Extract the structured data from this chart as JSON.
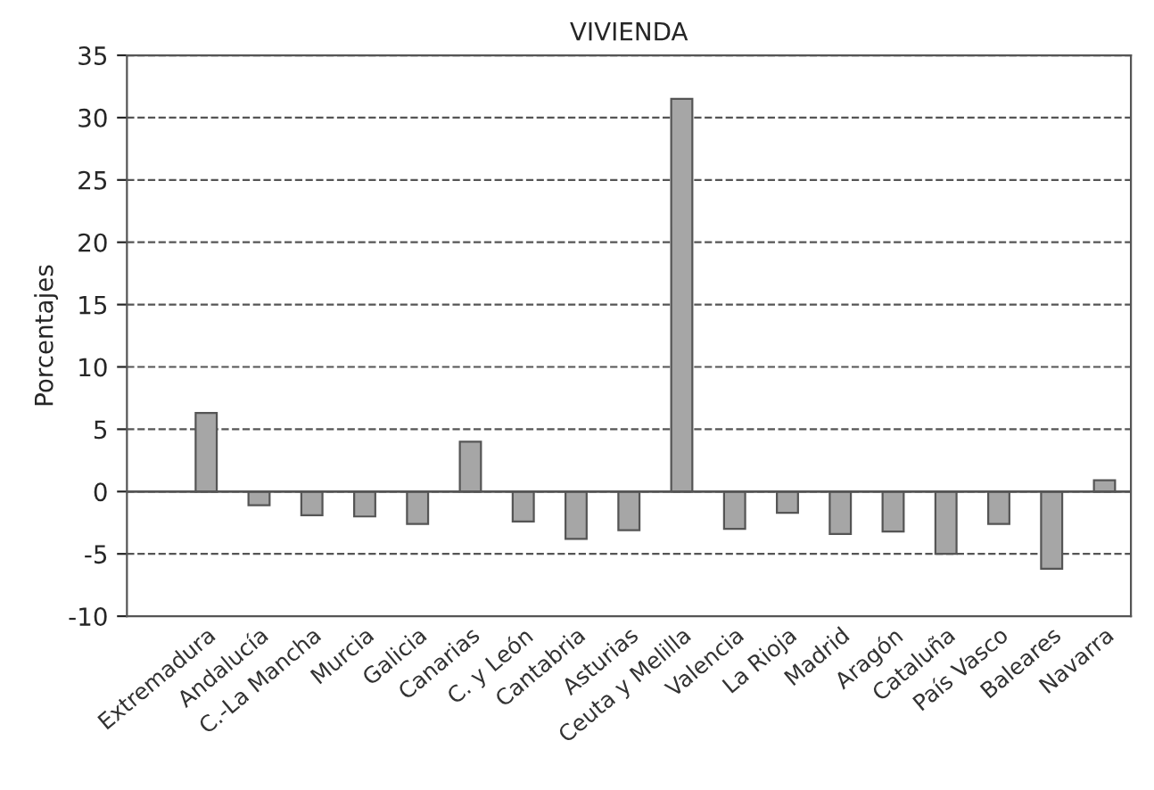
{
  "chart_data": {
    "type": "bar",
    "title": "VIVIENDA",
    "ylabel": "Porcentajes",
    "categories": [
      "Extremadura",
      "Andalucía",
      "C.-La Mancha",
      "Murcia",
      "Galicia",
      "Canarias",
      "C. y León",
      "Cantabria",
      "Asturias",
      "Ceuta y Melilla",
      "Valencia",
      "La Rioja",
      "Madrid",
      "Aragón",
      "Cataluña",
      "País Vasco",
      "Baleares",
      "Navarra"
    ],
    "values": [
      6.3,
      -1.1,
      -1.9,
      -2.0,
      -2.6,
      4.0,
      -2.4,
      -3.8,
      -3.1,
      31.5,
      -3.0,
      -1.7,
      -3.4,
      -3.2,
      -5.0,
      -2.6,
      -6.2,
      0.9
    ],
    "color": "#a6a6a6",
    "ylim": [
      -10,
      35
    ],
    "yticks": [
      -10,
      -5,
      0,
      5,
      10,
      15,
      20,
      25,
      30,
      35
    ],
    "grid": "y",
    "line_style": "dashed"
  }
}
